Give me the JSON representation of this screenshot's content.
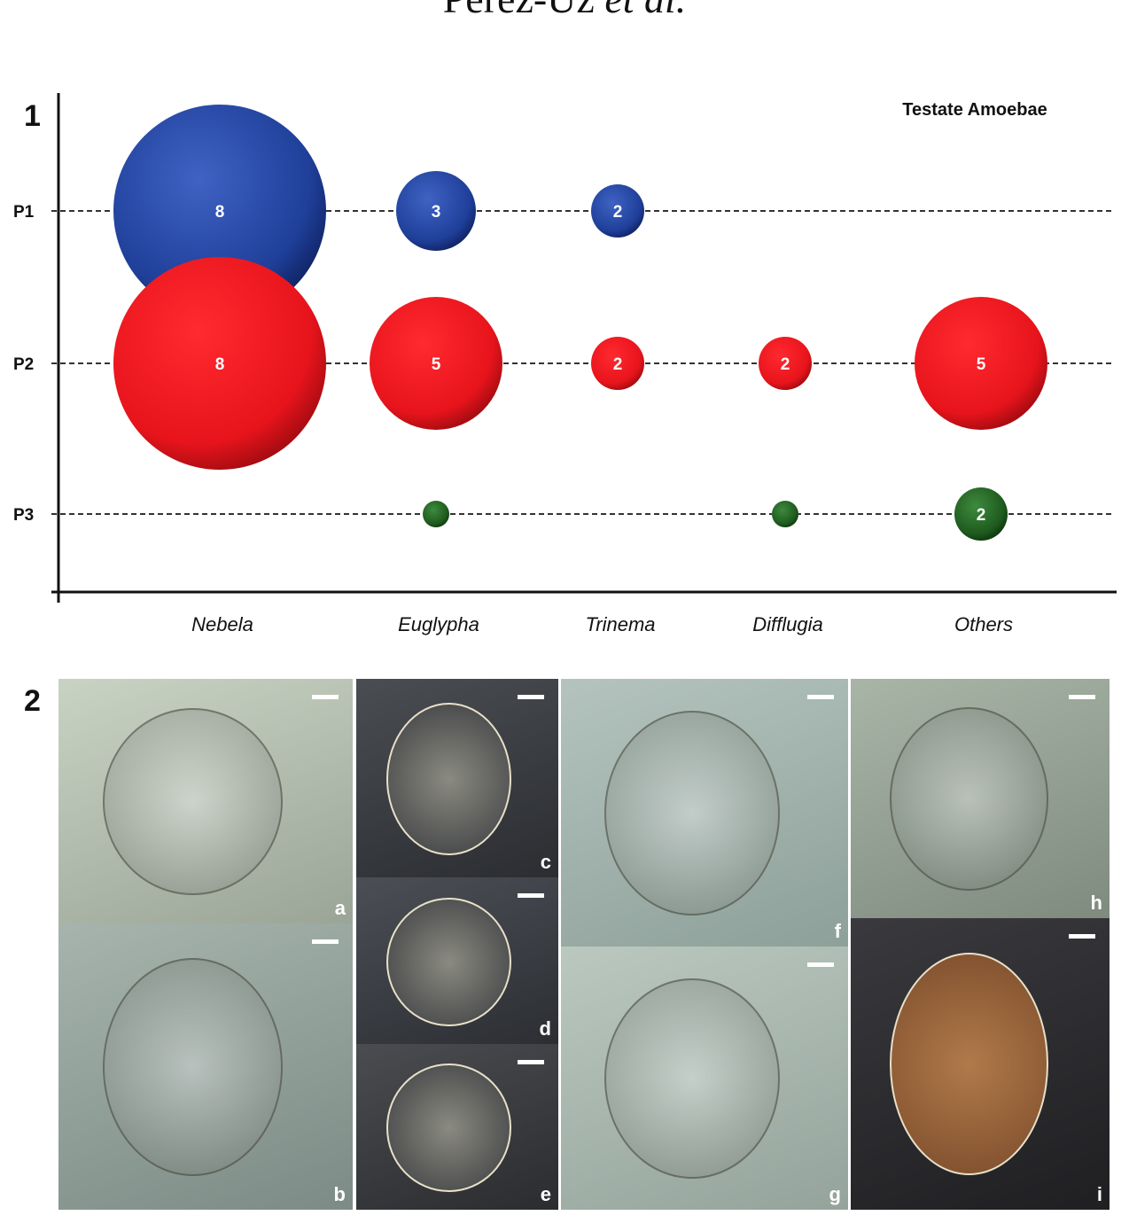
{
  "running_head": {
    "authors": "Pérez-Uz",
    "etal": "et al."
  },
  "figure1": {
    "panel_label": "1",
    "chart_data": {
      "type": "bubble",
      "title": "Testate Amoebae",
      "categories": [
        "Nebela",
        "Euglypha",
        "Trinema",
        "Difflugia",
        "Others"
      ],
      "rows": [
        "P1",
        "P2",
        "P3"
      ],
      "series": [
        {
          "name": "P1",
          "color": "#1f3f99",
          "values": [
            8,
            3,
            2,
            null,
            null
          ]
        },
        {
          "name": "P2",
          "color": "#e8141c",
          "values": [
            8,
            5,
            2,
            2,
            5
          ]
        },
        {
          "name": "P3",
          "color": "#1e5a1e",
          "values": [
            null,
            1,
            null,
            1,
            2
          ]
        }
      ],
      "unlabeled_values": [
        1
      ],
      "grid": "dashed horizontal row lines"
    }
  },
  "figure2": {
    "panel_label": "2",
    "photos": [
      {
        "label": "a",
        "colors": [
          "#c9d3c4",
          "#9ba597"
        ]
      },
      {
        "label": "b",
        "colors": [
          "#a6b4ad",
          "#7d8b86"
        ]
      },
      {
        "label": "c",
        "colors": [
          "#4a4d52",
          "#2b2d31"
        ]
      },
      {
        "label": "d",
        "colors": [
          "#4b4f55",
          "#2c2e33"
        ]
      },
      {
        "label": "e",
        "colors": [
          "#4a4c50",
          "#2a2c2f"
        ]
      },
      {
        "label": "f",
        "colors": [
          "#b4c3bd",
          "#8ea09a"
        ]
      },
      {
        "label": "g",
        "colors": [
          "#bac8c0",
          "#94a39b"
        ]
      },
      {
        "label": "h",
        "colors": [
          "#a8b5a7",
          "#7e8b7e"
        ]
      },
      {
        "label": "i",
        "colors": [
          "#3a3a3e",
          "#1f1f22"
        ]
      }
    ]
  }
}
